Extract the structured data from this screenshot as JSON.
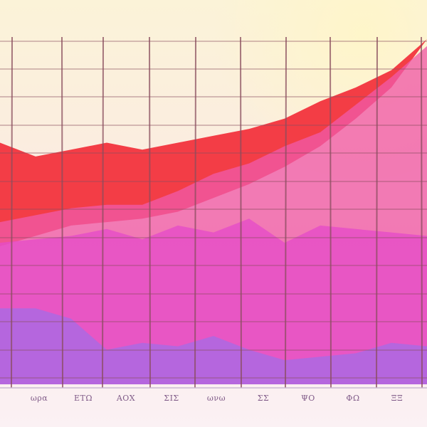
{
  "chart_data": {
    "type": "area",
    "title": "",
    "xlabel": "",
    "ylabel": "",
    "grid": true,
    "legend": "none",
    "x_tick_labels": [
      "ωρα",
      "ΕΤΩ",
      "ΑΟΧ",
      "ΣΙΣ",
      "ωνω",
      "ΣΣ",
      "ΨΟ",
      "ΦΩ",
      "ΞΞ"
    ],
    "x": [
      0,
      1,
      2,
      3,
      4,
      5,
      6,
      7,
      8,
      9,
      10,
      11,
      12
    ],
    "ylim": [
      0,
      100
    ],
    "series": [
      {
        "color": "#f22e38",
        "values": [
          70,
          66,
          68,
          70,
          68,
          70,
          72,
          74,
          77,
          82,
          86,
          91,
          100
        ],
        "baseline": [
          40,
          43,
          46,
          47,
          48,
          50,
          54,
          58,
          63,
          69,
          77,
          86,
          100
        ]
      },
      {
        "color": "#f05aa6",
        "values": [
          47,
          49,
          51,
          52,
          52,
          56,
          61,
          64,
          69,
          73,
          81,
          89,
          98
        ],
        "baseline": [
          0,
          0,
          0,
          0,
          0,
          0,
          0,
          0,
          0,
          0,
          0,
          0,
          0
        ]
      },
      {
        "color": "#e64cc8",
        "values": [
          41,
          42,
          43,
          45,
          42,
          46,
          44,
          48,
          41,
          46,
          45,
          44,
          43
        ],
        "baseline": [
          0,
          0,
          0,
          0,
          0,
          0,
          0,
          0,
          0,
          0,
          0,
          0,
          0
        ]
      },
      {
        "color": "#a66ae6",
        "values": [
          22,
          22,
          19,
          10,
          12,
          11,
          14,
          10,
          7,
          8,
          9,
          12,
          11
        ],
        "baseline": [
          0,
          0,
          0,
          0,
          0,
          0,
          0,
          0,
          0,
          0,
          0,
          0,
          0
        ]
      }
    ]
  },
  "colors": {
    "grid": "#8a4e5e",
    "background_top": "#fbf2dc",
    "background_bottom": "#fbeef0",
    "axis": "#c9b9d2"
  }
}
